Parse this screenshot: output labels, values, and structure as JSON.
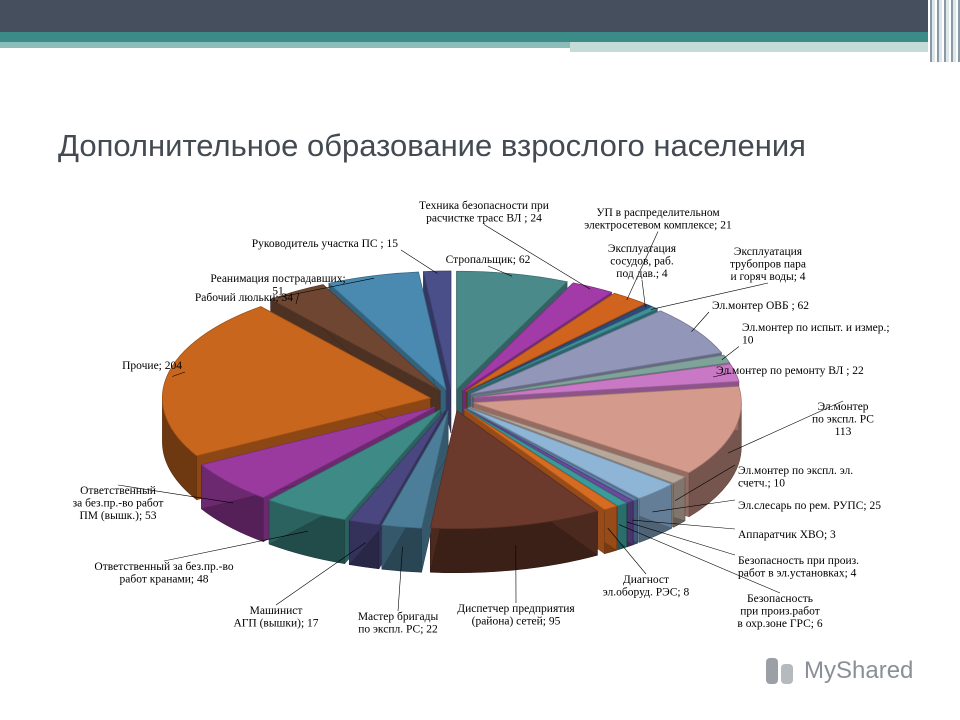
{
  "slide": {
    "title": "Дополнительное образование взрослого населения",
    "watermark": "MyShared"
  },
  "chart_data": {
    "type": "pie",
    "title": "",
    "slices": [
      {
        "label": [
          "Стропальщик; 62"
        ],
        "value": 62,
        "color": "#4a8a8a"
      },
      {
        "label": [
          "Техника безопасности при",
          "расчистке трасс ВЛ ; 24"
        ],
        "value": 24,
        "color": "#a23aa8"
      },
      {
        "label": [
          "УП в распределительном",
          "электросетевом комплексе; 21"
        ],
        "value": 21,
        "color": "#d0641f"
      },
      {
        "label": [
          "Эксплуатация",
          "сосудов, раб.",
          "под дав.; 4"
        ],
        "value": 4,
        "color": "#2f4a78"
      },
      {
        "label": [
          "Эксплуатация",
          "трубопров пара",
          "и горяч воды; 4"
        ],
        "value": 4,
        "color": "#3f8f99"
      },
      {
        "label": [
          "Эл.монтер ОВБ ; 62"
        ],
        "value": 62,
        "color": "#9296b8"
      },
      {
        "label": [
          "Эл.монтер по испыт. и измер.;",
          "10"
        ],
        "value": 10,
        "color": "#7fa39a"
      },
      {
        "label": [
          "Эл.монтер по ремонту ВЛ ; 22"
        ],
        "value": 22,
        "color": "#c878c4"
      },
      {
        "label": [
          "Эл.монтер",
          "по экспл. РС",
          "113"
        ],
        "value": 113,
        "color": "#d49a8c"
      },
      {
        "label": [
          "Эл.монтер по экспл. эл.",
          "счетч.; 10"
        ],
        "value": 10,
        "color": "#b8a89c"
      },
      {
        "label": [
          "Эл.слесарь по рем. РУПС; 25"
        ],
        "value": 25,
        "color": "#8eb4d6"
      },
      {
        "label": [
          "Аппаратчик ХВО; 3"
        ],
        "value": 3,
        "color": "#5d7fa8"
      },
      {
        "label": [
          "Безопасность при произ.",
          "работ в эл.установках; 4"
        ],
        "value": 4,
        "color": "#6a4a9a"
      },
      {
        "label": [
          "Безопасность",
          "при произ.работ",
          "в охр.зоне ГРС; 6"
        ],
        "value": 6,
        "color": "#3d9a9a"
      },
      {
        "label": [
          "Диагност",
          "эл.оборуд. РЭС; 8"
        ],
        "value": 8,
        "color": "#d66b22"
      },
      {
        "label": [
          "Диспетчер предприятия",
          "(района) сетей; 95"
        ],
        "value": 95,
        "color": "#6b3a2c"
      },
      {
        "label": [
          "Мастер бригады",
          "по экспл. РС; 22"
        ],
        "value": 22,
        "color": "#4d7e99"
      },
      {
        "label": [
          "Машинист",
          "АГП (вышки); 17"
        ],
        "value": 17,
        "color": "#4a4780"
      },
      {
        "label": [
          "Ответственный за без.пр.-во",
          "работ кранами; 48"
        ],
        "value": 48,
        "color": "#3e8a86"
      },
      {
        "label": [
          "Ответственный",
          "за без.пр.-во работ",
          "ПМ (вышк.); 53"
        ],
        "value": 53,
        "color": "#9a3a9e"
      },
      {
        "label": [
          "Прочие; 204"
        ],
        "value": 204,
        "color": "#c8661e"
      },
      {
        "label": [
          "Рабочий люльки; 34"
        ],
        "value": 34,
        "color": "#6e4632"
      },
      {
        "label": [
          "Реанимация пострадавших;",
          "51"
        ],
        "value": 51,
        "color": "#4a8ab0"
      },
      {
        "label": [
          "Руководитель участка ПС ; 15"
        ],
        "value": 15,
        "color": "#4a4f8a"
      }
    ]
  }
}
